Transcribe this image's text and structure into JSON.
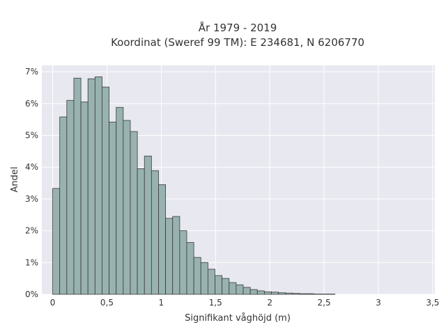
{
  "chart_data": {
    "type": "bar",
    "title": "År 1979 - 2019",
    "subtitle": "Koordinat (Sweref 99 TM): E 234681, N 6206770",
    "xlabel": "Signifikant våghöjd (m)",
    "ylabel": "Andel",
    "xlim": [
      -0.1,
      3.52
    ],
    "ylim": [
      0,
      7.2
    ],
    "x_ticks": [
      0,
      0.5,
      1,
      1.5,
      2,
      2.5,
      3,
      3.5
    ],
    "x_tick_labels": [
      "0",
      "0,5",
      "1",
      "1,5",
      "2",
      "2,5",
      "3",
      "3,5"
    ],
    "y_ticks": [
      0,
      1,
      2,
      3,
      4,
      5,
      6,
      7
    ],
    "y_tick_labels": [
      "0%",
      "1%",
      "2%",
      "3%",
      "4%",
      "5%",
      "6%",
      "7%"
    ],
    "grid": true,
    "bin_start": 0.0,
    "bin_width": 0.065,
    "values": [
      3.33,
      5.58,
      6.1,
      6.8,
      6.05,
      6.78,
      6.84,
      6.52,
      5.42,
      5.88,
      5.47,
      5.12,
      3.95,
      4.35,
      3.89,
      3.45,
      2.39,
      2.45,
      2.0,
      1.63,
      1.16,
      1.0,
      0.79,
      0.59,
      0.5,
      0.37,
      0.3,
      0.22,
      0.15,
      0.11,
      0.08,
      0.07,
      0.05,
      0.04,
      0.03,
      0.02,
      0.02,
      0.01,
      0.01,
      0.01,
      0.0,
      0.0,
      0.0,
      0.0,
      0.0,
      0.0,
      0.0,
      0.0,
      0.0,
      0.0,
      0.0
    ],
    "colors": {
      "bar": "#98b2b0",
      "bar_edge": "#3a3a3a",
      "plot_bg": "#e8e8f0",
      "grid": "#ffffff"
    }
  }
}
